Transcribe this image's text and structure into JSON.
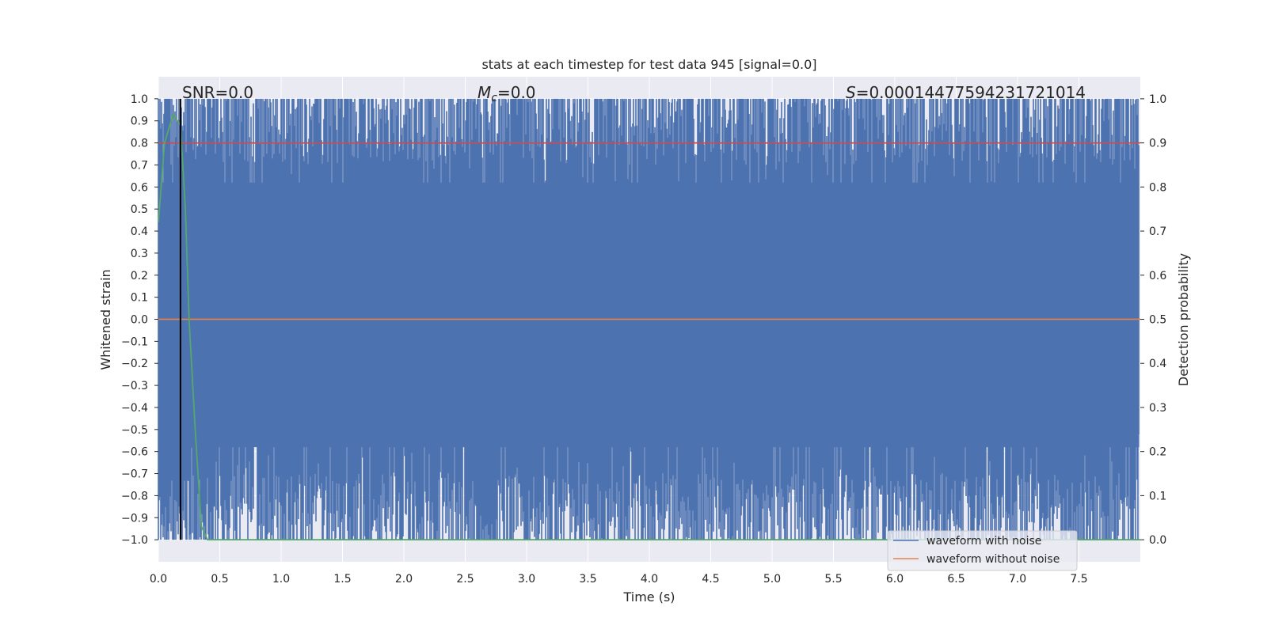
{
  "chart_data": {
    "type": "line",
    "title": "stats at each timestep for test data 945 [signal=0.0]",
    "xlabel": "Time (s)",
    "ylabel": "Whitened strain",
    "y2label": "Detection probability",
    "xlim": [
      0.0,
      8.0
    ],
    "ylim": [
      -1.1,
      1.1
    ],
    "y2lim": [
      -0.05,
      1.05
    ],
    "x_ticks": [
      0.0,
      0.5,
      1.0,
      1.5,
      2.0,
      2.5,
      3.0,
      3.5,
      4.0,
      4.5,
      5.0,
      5.5,
      6.0,
      6.5,
      7.0,
      7.5
    ],
    "x_tick_labels": [
      "0.0",
      "0.5",
      "1.0",
      "1.5",
      "2.0",
      "2.5",
      "3.0",
      "3.5",
      "4.0",
      "4.5",
      "5.0",
      "5.5",
      "6.0",
      "6.5",
      "7.0",
      "7.5"
    ],
    "y_ticks": [
      1.0,
      0.9,
      0.8,
      0.7,
      0.6,
      0.5,
      0.4,
      0.3,
      0.2,
      0.1,
      0.0,
      -0.1,
      -0.2,
      -0.3,
      -0.4,
      -0.5,
      -0.6,
      -0.7,
      -0.8,
      -0.9,
      -1.0
    ],
    "y_tick_labels": [
      "1.0",
      "0.9",
      "0.8",
      "0.7",
      "0.6",
      "0.5",
      "0.4",
      "0.3",
      "0.2",
      "0.1",
      "0.0",
      "−0.1",
      "−0.2",
      "−0.3",
      "−0.4",
      "−0.5",
      "−0.6",
      "−0.7",
      "−0.8",
      "−0.9",
      "−1.0"
    ],
    "y2_ticks": [
      1.0,
      0.9,
      0.8,
      0.7,
      0.6,
      0.5,
      0.4,
      0.3,
      0.2,
      0.1,
      0.0
    ],
    "y2_tick_labels": [
      "1.0",
      "0.9",
      "0.8",
      "0.7",
      "0.6",
      "0.5",
      "0.4",
      "0.3",
      "0.2",
      "0.1",
      "0.0"
    ],
    "grid": true,
    "legend_position": "lower-right",
    "annotations": {
      "snr": "SNR=0.0",
      "mc_symbol": "M",
      "mc_sub": "c",
      "mc_value": "=0.0",
      "s_symbol": "S",
      "s_value": "=0.00014477594231721014"
    },
    "series": [
      {
        "name": "waveform with noise",
        "color": "#4c72b0",
        "axis": "left",
        "style": "dense noise, amplitude clipped to [-1, 1], about 1000 samples per second"
      },
      {
        "name": "waveform without noise",
        "color": "#dd8452",
        "axis": "left",
        "x": [
          0.0,
          8.0
        ],
        "y": [
          0.0,
          0.0
        ]
      },
      {
        "color": "#c44e52",
        "axis": "left",
        "x": [
          0.0,
          8.0
        ],
        "y": [
          0.8,
          0.8
        ]
      },
      {
        "color": "#55a868",
        "axis": "right",
        "x": [
          0.0,
          0.05,
          0.12,
          0.18,
          0.22,
          0.25,
          0.3,
          0.35,
          0.4,
          8.0
        ],
        "y": [
          0.72,
          0.9,
          0.965,
          0.94,
          0.75,
          0.5,
          0.25,
          0.03,
          0.0,
          0.0
        ]
      },
      {
        "color": "#000000",
        "axis": "left",
        "x": [
          0.18,
          0.18
        ],
        "y": [
          -1.0,
          1.0
        ]
      }
    ],
    "colors": {
      "plot_bg": "#eaeaf2",
      "grid": "#ffffff"
    }
  }
}
